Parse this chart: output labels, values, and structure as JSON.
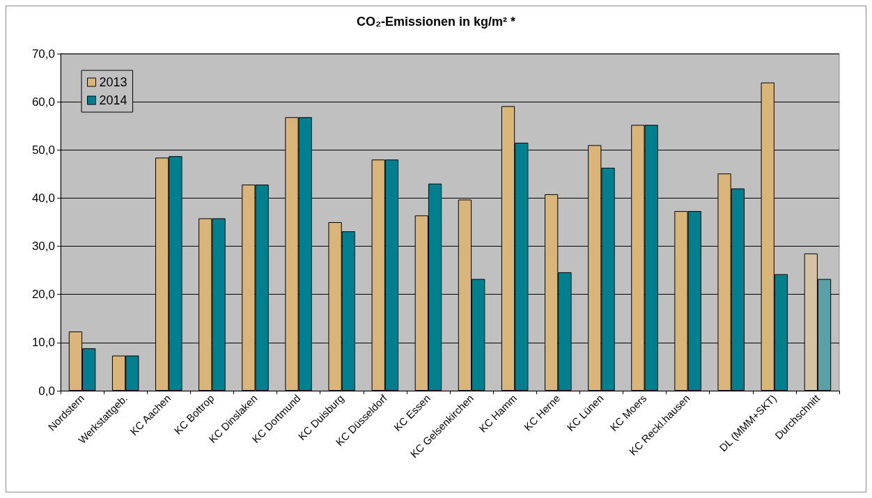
{
  "chart_data": {
    "type": "bar",
    "title": "CO₂-Emissionen in kg/m² *",
    "categories": [
      "Nordstern",
      "Werkstattgeb.",
      "KC Aachen",
      "KC Bottrop",
      "KC Dinslaken",
      "KC Dortmund",
      "KC Duisburg",
      "KC Düsseldorf",
      "KC Essen",
      "KC Gelsenkirchen",
      "KC Hamm",
      "KC Herne",
      "KC Lünen",
      "KC Moers",
      "KC Reckl.hausen",
      null,
      "DL (MMM+SKT)",
      "Durchschnitt"
    ],
    "series": [
      {
        "name": "2013",
        "color": "#d9b57a",
        "colors": [
          "#d9b57a",
          "#d9b57a",
          "#d9b57a",
          "#d9b57a",
          "#d9b57a",
          "#d9b57a",
          "#d9b57a",
          "#d9b57a",
          "#d9b57a",
          "#d9b57a",
          "#d9b57a",
          "#d9b57a",
          "#d9b57a",
          "#d9b57a",
          "#d9b57a",
          "#d9b57a",
          "#d9b57a",
          "#d4c3a3"
        ],
        "values": [
          12.3,
          7.3,
          48.4,
          35.8,
          42.8,
          56.8,
          35.0,
          48.0,
          36.4,
          39.7,
          59.1,
          40.8,
          51.0,
          55.2,
          37.3,
          45.1,
          64.0,
          28.5
        ]
      },
      {
        "name": "2014",
        "color": "#00808f",
        "colors": [
          "#00808f",
          "#00808f",
          "#00808f",
          "#00808f",
          "#00808f",
          "#00808f",
          "#00808f",
          "#00808f",
          "#00808f",
          "#00808f",
          "#00808f",
          "#00808f",
          "#00808f",
          "#00808f",
          "#00808f",
          "#00808f",
          "#00808f",
          "#5b9fa7"
        ],
        "values": [
          8.8,
          7.3,
          48.7,
          35.8,
          42.8,
          56.8,
          33.1,
          48.0,
          43.0,
          23.2,
          51.5,
          24.6,
          46.3,
          55.2,
          37.3,
          42.0,
          24.2,
          23.2
        ]
      }
    ],
    "ylim": [
      0,
      70
    ],
    "yticks": [
      {
        "value": 0,
        "label": "0,0"
      },
      {
        "value": 10,
        "label": "10,0"
      },
      {
        "value": 20,
        "label": "20,0"
      },
      {
        "value": 30,
        "label": "30,0"
      },
      {
        "value": 40,
        "label": "40,0"
      },
      {
        "value": 50,
        "label": "50,0"
      },
      {
        "value": 60,
        "label": "60,0"
      },
      {
        "value": 70,
        "label": "70,0"
      }
    ],
    "grid": "y",
    "legend": "top left"
  }
}
